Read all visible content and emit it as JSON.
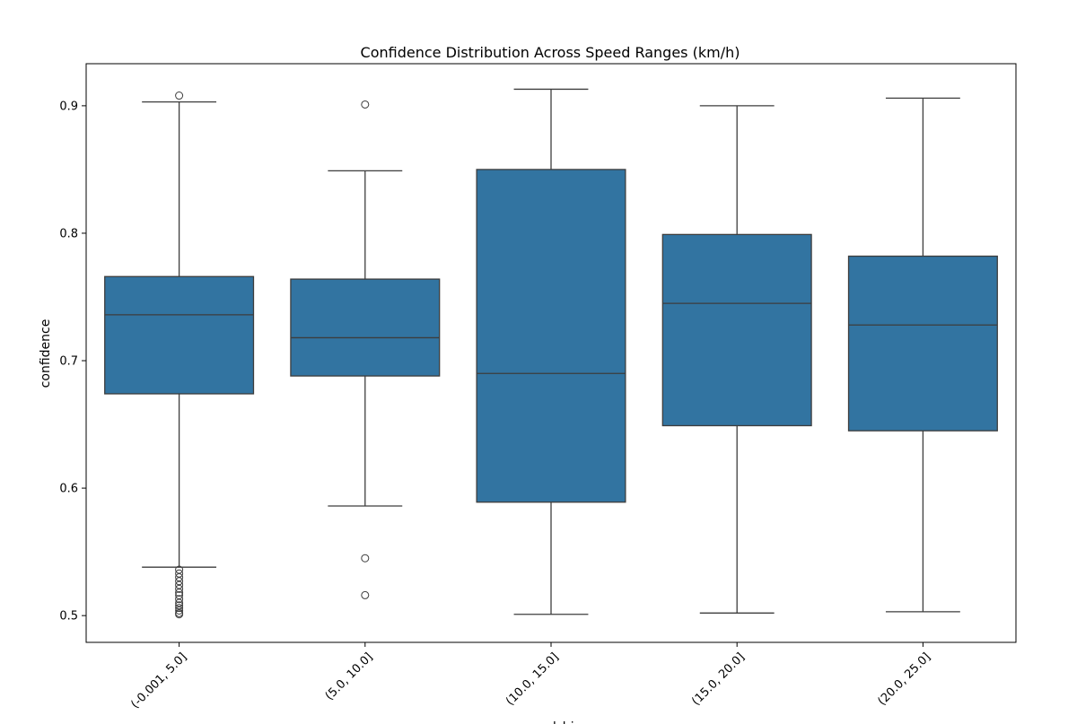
{
  "chart_data": {
    "type": "box",
    "title": "Confidence Distribution Across Speed Ranges (km/h)",
    "xlabel": "speed_bin",
    "ylabel": "confidence",
    "ylim": [
      0.479,
      0.933
    ],
    "yticks": [
      0.5,
      0.6,
      0.7,
      0.8,
      0.9
    ],
    "grid": false,
    "box_color": "#3274a1",
    "line_color": "#3d3d3d",
    "categories": [
      "(-0.001, 5.0]",
      "(5.0, 10.0]",
      "(10.0, 15.0]",
      "(15.0, 20.0]",
      "(20.0, 25.0]"
    ],
    "boxes": [
      {
        "whisker_low": 0.538,
        "q1": 0.674,
        "median": 0.736,
        "q3": 0.766,
        "whisker_high": 0.903,
        "outliers": [
          0.908,
          0.536,
          0.533,
          0.53,
          0.527,
          0.524,
          0.521,
          0.518,
          0.516,
          0.513,
          0.51,
          0.508,
          0.506,
          0.504,
          0.502,
          0.501
        ]
      },
      {
        "whisker_low": 0.586,
        "q1": 0.688,
        "median": 0.718,
        "q3": 0.764,
        "whisker_high": 0.849,
        "outliers": [
          0.901,
          0.545,
          0.516
        ]
      },
      {
        "whisker_low": 0.501,
        "q1": 0.589,
        "median": 0.69,
        "q3": 0.85,
        "whisker_high": 0.913,
        "outliers": []
      },
      {
        "whisker_low": 0.502,
        "q1": 0.649,
        "median": 0.745,
        "q3": 0.799,
        "whisker_high": 0.9,
        "outliers": []
      },
      {
        "whisker_low": 0.503,
        "q1": 0.645,
        "median": 0.728,
        "q3": 0.782,
        "whisker_high": 0.906,
        "outliers": []
      }
    ]
  }
}
